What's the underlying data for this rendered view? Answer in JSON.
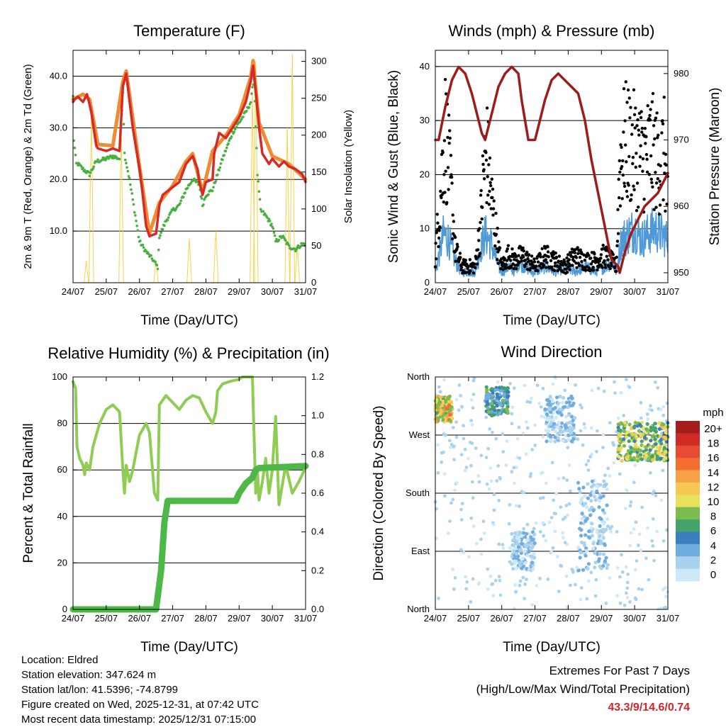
{
  "figure": {
    "info": {
      "location": "Location: Eldred",
      "elevation": "Station elevation: 347.624 m",
      "latlon": "Station lat/lon: 41.5396; -74.8799",
      "created": "Figure created on Wed, 2025-12-31, at 07:42 UTC",
      "recent": "Most recent data timestamp: 2025/12/31 07:15:00"
    },
    "extremes": {
      "title": "Extremes For Past 7 Days",
      "subtitle": "(High/Low/Max Wind/Total Precipitation)",
      "values": "43.3/9/14.6/0.74",
      "color": "#cc2a2a"
    }
  },
  "chart_data": [
    {
      "type": "line",
      "title": "Temperature (F)",
      "xlabel": "Time (Day/UTC)",
      "ylabel": "2m & 9m T (Red, Orange) & 2m Td (Green)",
      "y2label": "Solar Insolation (Yellow)",
      "xticks": [
        "24/07",
        "25/07",
        "26/07",
        "27/07",
        "28/07",
        "29/07",
        "30/07",
        "31/07"
      ],
      "xlim": [
        0,
        7
      ],
      "ylim": [
        0,
        45
      ],
      "yticks": [
        "10.0",
        "20.0",
        "30.0",
        "40.0"
      ],
      "y2lim": [
        0,
        315
      ],
      "y2ticks": [
        "0",
        "50",
        "100",
        "150",
        "200",
        "250",
        "300"
      ],
      "series": [
        {
          "name": "2m T",
          "color": "#d62a24",
          "x": [
            0,
            0.05,
            0.15,
            0.3,
            0.42,
            0.48,
            0.55,
            0.7,
            0.75,
            1.0,
            1.2,
            1.4,
            1.5,
            1.6,
            1.8,
            2.0,
            2.08,
            2.15,
            2.2,
            2.3,
            2.5,
            2.6,
            2.7,
            2.8,
            3.0,
            3.2,
            3.4,
            3.6,
            3.75,
            3.8,
            3.9,
            4.0,
            4.2,
            4.25,
            4.4,
            4.6,
            4.8,
            5.0,
            5.2,
            5.35,
            5.42,
            5.5,
            5.6,
            5.7,
            5.9,
            6.0,
            6.2,
            6.35,
            6.5,
            6.7,
            6.9,
            7.0
          ],
          "y": [
            35,
            35.5,
            36,
            35,
            36.5,
            35,
            33,
            26.5,
            26,
            25.5,
            26,
            25.5,
            38,
            40.5,
            30,
            22,
            18,
            14,
            11,
            9,
            9.5,
            15,
            17,
            17.5,
            18.5,
            19.5,
            23,
            24.5,
            22,
            19.5,
            17,
            19.5,
            20,
            25,
            29,
            28,
            30,
            32,
            35,
            39,
            42,
            37,
            30,
            25,
            23,
            24,
            22.5,
            23.5,
            22.5,
            22,
            21,
            19.5
          ]
        },
        {
          "name": "9m T",
          "color": "#ef8b34",
          "x": [
            0,
            0.3,
            0.5,
            0.75,
            1.2,
            1.5,
            1.6,
            2.0,
            2.3,
            2.6,
            3.0,
            3.4,
            3.6,
            3.9,
            4.2,
            4.6,
            5.0,
            5.35,
            5.42,
            5.6,
            6.0,
            6.5,
            7.0
          ],
          "y": [
            35.5,
            36.5,
            35.5,
            26.8,
            26.5,
            39,
            41,
            22.5,
            9.5,
            15.5,
            18.8,
            23.5,
            25,
            17.5,
            25.5,
            28.5,
            32.5,
            39.8,
            43,
            31,
            24.5,
            23,
            20
          ]
        },
        {
          "name": "2m Td",
          "color": "#47b03f",
          "x": [
            0,
            0.02,
            0.05,
            0.08,
            0.1,
            0.15,
            0.3,
            0.5,
            0.7,
            1.0,
            1.2,
            1.4,
            1.5,
            1.55,
            1.7,
            1.9,
            2.0,
            2.2,
            2.4,
            2.5,
            2.55,
            2.6,
            2.8,
            3.0,
            3.2,
            3.4,
            3.6,
            3.8,
            3.9,
            4.0,
            4.2,
            4.5,
            4.8,
            5.0,
            5.2,
            5.35,
            5.45,
            5.55,
            5.65,
            5.8,
            6.0,
            6.1,
            6.3,
            6.5,
            6.7,
            6.9,
            7.0
          ],
          "y": [
            36,
            28,
            26,
            24,
            23,
            23,
            22,
            21,
            23.5,
            24,
            24.5,
            24,
            37,
            25,
            20,
            12,
            8,
            6,
            4.5,
            3.5,
            3,
            9,
            12,
            14,
            15,
            18,
            20,
            19,
            15,
            17,
            18,
            24,
            29,
            31,
            33,
            35,
            40,
            21,
            14,
            13,
            11,
            8,
            9,
            7,
            6.5,
            7.5,
            7.5
          ]
        }
      ],
      "secondary_series": [
        {
          "name": "Solar Insolation",
          "color": "#f7d24a",
          "peaks": [
            [
              0.4,
              30
            ],
            [
              0.55,
              230
            ],
            [
              1.45,
              210
            ],
            [
              2.5,
              30
            ],
            [
              3.5,
              60
            ],
            [
              4.3,
              70
            ],
            [
              5.4,
              260
            ],
            [
              5.5,
              300
            ],
            [
              6.45,
              210
            ],
            [
              6.6,
              310
            ],
            [
              6.75,
              50
            ]
          ]
        }
      ]
    },
    {
      "type": "scatter",
      "title": "Winds (mph) & Pressure (mb)",
      "xlabel": "Time (Day/UTC)",
      "ylabel": "Sonic Wind & Gust (Blue, Black)",
      "y2label": "Station Pressure (Maroon)",
      "xticks": [
        "24/07",
        "25/07",
        "26/07",
        "27/07",
        "28/07",
        "29/07",
        "30/07",
        "31/07"
      ],
      "xlim": [
        0,
        7
      ],
      "ylim": [
        0,
        43
      ],
      "yticks": [
        "0",
        "10",
        "20",
        "30",
        "40"
      ],
      "y2lim": [
        948.5,
        983.5
      ],
      "y2ticks": [
        "950",
        "960",
        "970",
        "980"
      ],
      "series": [
        {
          "name": "Sonic Wind",
          "color": "#4f9ad6",
          "x": [
            0,
            0.15,
            0.25,
            0.4,
            0.6,
            0.8,
            1.0,
            1.2,
            1.35,
            1.5,
            1.7,
            1.9,
            2.0,
            2.2,
            2.4,
            2.5,
            2.7,
            2.9,
            3.0,
            3.3,
            3.6,
            3.9,
            4.2,
            4.5,
            4.8,
            5.1,
            5.3,
            5.45,
            5.6,
            5.8,
            6.0,
            6.2,
            6.4,
            6.6,
            6.8,
            7.0
          ],
          "y": [
            2,
            6,
            9,
            8,
            4,
            2,
            2,
            2,
            6,
            9,
            7,
            3,
            2,
            3,
            2,
            4,
            3,
            2,
            2,
            3,
            2,
            3,
            2,
            3,
            2,
            3,
            4,
            2,
            8,
            9,
            10,
            8,
            9,
            10,
            9,
            8
          ]
        },
        {
          "name": "Gust",
          "color": "#000000",
          "x": [
            0,
            0.1,
            0.2,
            0.3,
            0.4,
            0.5,
            0.6,
            0.8,
            1.0,
            1.2,
            1.35,
            1.45,
            1.55,
            1.7,
            1.9,
            2.0,
            2.2,
            2.4,
            2.6,
            2.8,
            3.0,
            3.3,
            3.6,
            3.9,
            4.2,
            4.5,
            4.8,
            5.1,
            5.3,
            5.45,
            5.55,
            5.7,
            5.9,
            6.1,
            6.3,
            6.5,
            6.7,
            6.9,
            7.0
          ],
          "y": [
            5,
            12,
            20,
            28,
            22,
            15,
            6,
            3,
            3,
            3,
            10,
            20,
            24,
            15,
            6,
            3,
            5,
            4,
            5,
            4,
            3,
            5,
            4,
            3,
            5,
            4,
            4,
            5,
            4,
            3,
            22,
            26,
            25,
            24,
            23,
            25,
            22,
            24,
            14
          ]
        },
        {
          "name": "Station Pressure",
          "color": "#9c1c1c",
          "x": [
            0,
            0.1,
            0.3,
            0.5,
            0.7,
            0.9,
            1.1,
            1.3,
            1.4,
            1.5,
            1.7,
            1.9,
            2.1,
            2.3,
            2.5,
            2.6,
            2.7,
            2.8,
            3.0,
            3.1,
            3.3,
            3.5,
            3.7,
            3.9,
            4.1,
            4.3,
            4.5,
            4.7,
            4.9,
            5.1,
            5.3,
            5.5,
            5.55,
            5.7,
            5.9,
            6.1,
            6.3,
            6.5,
            6.7,
            6.9,
            7.0
          ],
          "y": [
            970,
            970,
            975,
            979,
            981,
            980,
            977,
            973,
            971,
            970,
            974,
            978,
            980,
            981,
            980,
            976,
            973,
            970,
            970,
            972,
            976,
            979,
            980,
            979,
            978,
            977,
            973,
            967,
            962,
            957,
            952,
            951,
            950,
            953,
            956,
            958,
            960,
            961,
            962,
            964,
            965
          ]
        }
      ]
    },
    {
      "type": "line",
      "title": "Relative Humidity (%) & Precipitation (in)",
      "xlabel": "Time (Day/UTC)",
      "ylabel": "Percent & Total Rainfall",
      "xticks": [
        "24/07",
        "25/07",
        "26/07",
        "27/07",
        "28/07",
        "29/07",
        "30/07",
        "31/07"
      ],
      "xlim": [
        0,
        7
      ],
      "ylim": [
        0,
        100
      ],
      "yticks": [
        "0",
        "20",
        "40",
        "60",
        "80",
        "100"
      ],
      "y2lim": [
        0,
        1.2
      ],
      "y2ticks": [
        "0.0",
        "0.2",
        "0.4",
        "0.6",
        "0.8",
        "1.0",
        "1.2"
      ],
      "series": [
        {
          "name": "Relative Humidity",
          "color": "#8fcc54",
          "x": [
            0,
            0.08,
            0.12,
            0.2,
            0.3,
            0.35,
            0.4,
            0.5,
            0.6,
            0.8,
            1.0,
            1.2,
            1.4,
            1.5,
            1.55,
            1.6,
            1.7,
            1.8,
            2.0,
            2.2,
            2.3,
            2.45,
            2.55,
            2.6,
            2.7,
            2.8,
            3.0,
            3.2,
            3.4,
            3.6,
            3.8,
            4.0,
            4.2,
            4.3,
            4.35,
            4.5,
            4.7,
            5.0,
            5.1,
            5.2,
            5.4,
            5.5,
            5.55,
            5.6,
            5.7,
            5.8,
            5.9,
            6.0,
            6.1,
            6.2,
            6.4,
            6.6,
            6.8,
            7.0
          ],
          "y": [
            98,
            95,
            70,
            65,
            62,
            58,
            63,
            60,
            70,
            80,
            86,
            88,
            85,
            60,
            50,
            62,
            55,
            60,
            75,
            80,
            76,
            50,
            47,
            88,
            90,
            92,
            89,
            86,
            90,
            92,
            91,
            85,
            80,
            85,
            94,
            97,
            98,
            99,
            100,
            100,
            100,
            50,
            60,
            47,
            55,
            65,
            50,
            60,
            83,
            45,
            62,
            50,
            55,
            61
          ]
        },
        {
          "name": "Total Precipitation",
          "color": "#4db848",
          "secondary_axis": true,
          "x": [
            0,
            2.0,
            2.5,
            2.65,
            2.75,
            2.85,
            3.0,
            3.5,
            4.0,
            4.5,
            4.9,
            5.0,
            5.2,
            5.4,
            5.5,
            5.6,
            7.0
          ],
          "y": [
            0,
            0,
            0,
            0.2,
            0.45,
            0.56,
            0.56,
            0.56,
            0.56,
            0.56,
            0.56,
            0.6,
            0.65,
            0.68,
            0.72,
            0.73,
            0.74
          ]
        }
      ]
    },
    {
      "type": "scatter",
      "title": "Wind Direction",
      "xlabel": "Time (Day/UTC)",
      "ylabel": "Direction (Colored By Speed)",
      "xticks": [
        "24/07",
        "25/07",
        "26/07",
        "27/07",
        "28/07",
        "29/07",
        "30/07",
        "31/07"
      ],
      "xlim": [
        0,
        7
      ],
      "yticks": [
        "North",
        "East",
        "South",
        "West",
        "North"
      ],
      "ylim": [
        0,
        360
      ],
      "colorbar": {
        "title": "mph",
        "labels": [
          "20+",
          "18",
          "16",
          "14",
          "12",
          "10",
          "8",
          "6",
          "4",
          "2",
          "0"
        ],
        "colors": [
          "#a51c1c",
          "#d02a27",
          "#e94a33",
          "#f46f2f",
          "#f7a248",
          "#f5c856",
          "#e8e15b",
          "#7cbb50",
          "#46a26d",
          "#3b7fbf",
          "#70addf",
          "#a9d2ef",
          "#cfe8f7"
        ]
      },
      "clusters": [
        {
          "x0": 0,
          "x1": 0.5,
          "y0": 290,
          "y1": 330,
          "speed": "8-20"
        },
        {
          "x0": 1.5,
          "x1": 2.2,
          "y0": 300,
          "y1": 345,
          "speed": "4-10"
        },
        {
          "x0": 2.3,
          "x1": 3.0,
          "y0": 60,
          "y1": 120,
          "speed": "0-4"
        },
        {
          "x0": 3.3,
          "x1": 4.2,
          "y0": 260,
          "y1": 330,
          "speed": "0-4"
        },
        {
          "x0": 4.3,
          "x1": 5.2,
          "y0": 60,
          "y1": 200,
          "speed": "0-4"
        },
        {
          "x0": 5.5,
          "x1": 7.0,
          "y0": 230,
          "y1": 290,
          "speed": "6-14"
        }
      ]
    }
  ]
}
